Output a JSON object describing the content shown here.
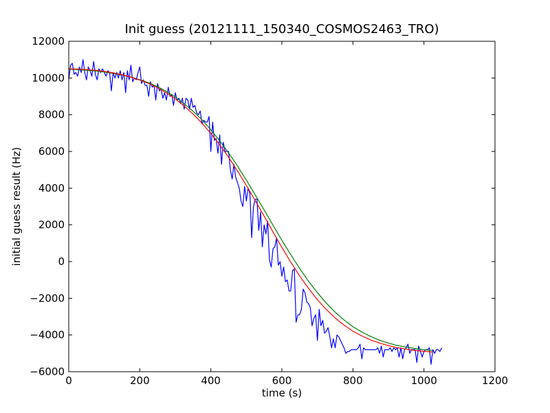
{
  "chart_data": {
    "type": "line",
    "title": "Init guess (20121111_150340_COSMOS2463_TRO)",
    "xlabel": "time (s)",
    "ylabel": "initial guess result (Hz)",
    "xlim": [
      0,
      1200
    ],
    "ylim": [
      -6000,
      12000
    ],
    "xticks": [
      0,
      200,
      400,
      600,
      800,
      1000,
      1200
    ],
    "yticks": [
      -6000,
      -4000,
      -2000,
      0,
      2000,
      4000,
      6000,
      8000,
      10000,
      12000
    ],
    "grid": false,
    "legend": "none",
    "series": [
      {
        "color": "#0000ff",
        "points": [
          [
            0,
            9900
          ],
          [
            5,
            10700
          ],
          [
            10,
            10800
          ],
          [
            15,
            10200
          ],
          [
            20,
            10300
          ],
          [
            25,
            10100
          ],
          [
            30,
            10600
          ],
          [
            35,
            10300
          ],
          [
            40,
            11000
          ],
          [
            45,
            10300
          ],
          [
            50,
            9900
          ],
          [
            55,
            10600
          ],
          [
            60,
            10400
          ],
          [
            65,
            10100
          ],
          [
            70,
            10900
          ],
          [
            75,
            10200
          ],
          [
            80,
            9900
          ],
          [
            85,
            10500
          ],
          [
            90,
            10300
          ],
          [
            95,
            10500
          ],
          [
            100,
            10300
          ],
          [
            105,
            10100
          ],
          [
            110,
            10400
          ],
          [
            115,
            10300
          ],
          [
            120,
            9300
          ],
          [
            125,
            10300
          ],
          [
            130,
            10000
          ],
          [
            135,
            10300
          ],
          [
            140,
            10000
          ],
          [
            145,
            10400
          ],
          [
            150,
            9900
          ],
          [
            155,
            10300
          ],
          [
            160,
            9200
          ],
          [
            165,
            10400
          ],
          [
            170,
            9900
          ],
          [
            175,
            10700
          ],
          [
            180,
            9800
          ],
          [
            185,
            10000
          ],
          [
            190,
            9900
          ],
          [
            195,
            10300
          ],
          [
            200,
            10600
          ],
          [
            205,
            9700
          ],
          [
            210,
            9900
          ],
          [
            215,
            9600
          ],
          [
            220,
            9600
          ],
          [
            225,
            9000
          ],
          [
            230,
            9800
          ],
          [
            235,
            9500
          ],
          [
            240,
            9600
          ],
          [
            245,
            8800
          ],
          [
            250,
            9700
          ],
          [
            255,
            9300
          ],
          [
            260,
            9400
          ],
          [
            265,
            8900
          ],
          [
            270,
            9200
          ],
          [
            275,
            8800
          ],
          [
            280,
            9500
          ],
          [
            285,
            9000
          ],
          [
            290,
            9100
          ],
          [
            295,
            8500
          ],
          [
            300,
            9200
          ],
          [
            305,
            8800
          ],
          [
            310,
            8900
          ],
          [
            315,
            8600
          ],
          [
            320,
            8900
          ],
          [
            325,
            8300
          ],
          [
            330,
            8900
          ],
          [
            335,
            8800
          ],
          [
            340,
            8300
          ],
          [
            345,
            8900
          ],
          [
            350,
            8400
          ],
          [
            355,
            8500
          ],
          [
            360,
            8100
          ],
          [
            365,
            8000
          ],
          [
            370,
            8200
          ],
          [
            375,
            7500
          ],
          [
            380,
            7700
          ],
          [
            385,
            7600
          ],
          [
            390,
            7600
          ],
          [
            395,
            7900
          ],
          [
            400,
            6000
          ],
          [
            405,
            7600
          ],
          [
            410,
            6600
          ],
          [
            415,
            6700
          ],
          [
            420,
            5900
          ],
          [
            425,
            6900
          ],
          [
            430,
            5300
          ],
          [
            435,
            6500
          ],
          [
            440,
            6000
          ],
          [
            445,
            6000
          ],
          [
            450,
            6000
          ],
          [
            455,
            5000
          ],
          [
            460,
            4500
          ],
          [
            465,
            5300
          ],
          [
            470,
            4600
          ],
          [
            475,
            4300
          ],
          [
            480,
            4000
          ],
          [
            485,
            3300
          ],
          [
            490,
            3000
          ],
          [
            495,
            4100
          ],
          [
            500,
            3300
          ],
          [
            505,
            4000
          ],
          [
            510,
            3700
          ],
          [
            515,
            1300
          ],
          [
            520,
            3000
          ],
          [
            525,
            3400
          ],
          [
            530,
            3400
          ],
          [
            535,
            1700
          ],
          [
            540,
            2700
          ],
          [
            545,
            800
          ],
          [
            550,
            2000
          ],
          [
            555,
            1500
          ],
          [
            560,
            2200
          ],
          [
            565,
            100
          ],
          [
            570,
            -300
          ],
          [
            575,
            700
          ],
          [
            580,
            800
          ],
          [
            585,
            1300
          ],
          [
            590,
            -200
          ],
          [
            595,
            0
          ],
          [
            600,
            -800
          ],
          [
            605,
            -300
          ],
          [
            610,
            -1100
          ],
          [
            615,
            -1000
          ],
          [
            620,
            -1600
          ],
          [
            625,
            -1600
          ],
          [
            630,
            -500
          ],
          [
            635,
            -400
          ],
          [
            640,
            -3300
          ],
          [
            645,
            -2900
          ],
          [
            650,
            -2900
          ],
          [
            655,
            -2600
          ],
          [
            660,
            -1500
          ],
          [
            665,
            -1700
          ],
          [
            670,
            -2200
          ],
          [
            675,
            -2300
          ],
          [
            680,
            -2500
          ],
          [
            685,
            -3500
          ],
          [
            690,
            -3100
          ],
          [
            695,
            -2900
          ],
          [
            700,
            -4300
          ],
          [
            705,
            -2600
          ],
          [
            710,
            -3500
          ],
          [
            715,
            -3200
          ],
          [
            720,
            -3900
          ],
          [
            725,
            -3800
          ],
          [
            730,
            -3600
          ],
          [
            735,
            -4100
          ],
          [
            740,
            -4700
          ],
          [
            745,
            -4200
          ],
          [
            750,
            -4700
          ],
          [
            755,
            -4000
          ],
          [
            760,
            -4100
          ],
          [
            765,
            -4300
          ],
          [
            770,
            -4500
          ],
          [
            775,
            -4700
          ],
          [
            780,
            -5000
          ],
          [
            785,
            -4900
          ],
          [
            790,
            -4900
          ],
          [
            795,
            -4800
          ],
          [
            800,
            -4800
          ],
          [
            805,
            -4800
          ],
          [
            810,
            -4800
          ],
          [
            815,
            -4700
          ],
          [
            820,
            -4500
          ],
          [
            825,
            -5300
          ],
          [
            830,
            -4700
          ],
          [
            835,
            -4800
          ],
          [
            840,
            -4800
          ],
          [
            845,
            -4800
          ],
          [
            850,
            -4800
          ],
          [
            855,
            -4800
          ],
          [
            860,
            -4800
          ],
          [
            865,
            -4800
          ],
          [
            870,
            -4700
          ],
          [
            875,
            -5000
          ],
          [
            880,
            -4600
          ],
          [
            885,
            -5200
          ],
          [
            890,
            -4800
          ],
          [
            895,
            -4800
          ],
          [
            900,
            -4800
          ],
          [
            905,
            -4700
          ],
          [
            910,
            -4900
          ],
          [
            915,
            -4700
          ],
          [
            920,
            -4800
          ],
          [
            925,
            -4700
          ],
          [
            930,
            -5200
          ],
          [
            935,
            -4700
          ],
          [
            940,
            -5300
          ],
          [
            945,
            -4800
          ],
          [
            950,
            -4700
          ],
          [
            955,
            -4500
          ],
          [
            960,
            -5000
          ],
          [
            965,
            -4800
          ],
          [
            970,
            -4800
          ],
          [
            975,
            -4800
          ],
          [
            980,
            -5500
          ],
          [
            985,
            -4600
          ],
          [
            990,
            -4900
          ],
          [
            995,
            -5200
          ],
          [
            1000,
            -4900
          ],
          [
            1005,
            -4800
          ],
          [
            1010,
            -4800
          ],
          [
            1015,
            -4700
          ],
          [
            1020,
            -5600
          ],
          [
            1025,
            -4800
          ],
          [
            1030,
            -5000
          ],
          [
            1035,
            -4800
          ],
          [
            1040,
            -4800
          ],
          [
            1045,
            -4900
          ],
          [
            1050,
            -4700
          ]
        ]
      },
      {
        "color": "#008000",
        "points": [
          [
            0,
            10480
          ],
          [
            25,
            10450
          ],
          [
            50,
            10420
          ],
          [
            75,
            10380
          ],
          [
            100,
            10330
          ],
          [
            125,
            10250
          ],
          [
            150,
            10160
          ],
          [
            175,
            10050
          ],
          [
            200,
            9910
          ],
          [
            225,
            9740
          ],
          [
            250,
            9530
          ],
          [
            275,
            9270
          ],
          [
            300,
            8960
          ],
          [
            325,
            8600
          ],
          [
            350,
            8190
          ],
          [
            375,
            7720
          ],
          [
            400,
            7180
          ],
          [
            425,
            6580
          ],
          [
            450,
            5920
          ],
          [
            475,
            5210
          ],
          [
            500,
            4440
          ],
          [
            525,
            3630
          ],
          [
            550,
            2810
          ],
          [
            575,
            1980
          ],
          [
            600,
            1160
          ],
          [
            625,
            380
          ],
          [
            650,
            -370
          ],
          [
            675,
            -1080
          ],
          [
            700,
            -1700
          ],
          [
            725,
            -2260
          ],
          [
            750,
            -2760
          ],
          [
            775,
            -3180
          ],
          [
            800,
            -3550
          ],
          [
            825,
            -3840
          ],
          [
            850,
            -4080
          ],
          [
            875,
            -4290
          ],
          [
            900,
            -4440
          ],
          [
            925,
            -4570
          ],
          [
            950,
            -4660
          ],
          [
            975,
            -4740
          ],
          [
            1000,
            -4800
          ],
          [
            1025,
            -4840
          ]
        ]
      },
      {
        "color": "#ff0000",
        "points": [
          [
            0,
            10500
          ],
          [
            25,
            10490
          ],
          [
            50,
            10460
          ],
          [
            75,
            10420
          ],
          [
            100,
            10360
          ],
          [
            125,
            10280
          ],
          [
            150,
            10180
          ],
          [
            175,
            10050
          ],
          [
            200,
            9890
          ],
          [
            225,
            9700
          ],
          [
            250,
            9470
          ],
          [
            275,
            9190
          ],
          [
            300,
            8860
          ],
          [
            325,
            8480
          ],
          [
            350,
            8040
          ],
          [
            375,
            7540
          ],
          [
            400,
            6980
          ],
          [
            425,
            6360
          ],
          [
            450,
            5680
          ],
          [
            475,
            4940
          ],
          [
            500,
            4150
          ],
          [
            525,
            3320
          ],
          [
            550,
            2470
          ],
          [
            575,
            1610
          ],
          [
            600,
            770
          ],
          [
            625,
            -30
          ],
          [
            650,
            -780
          ],
          [
            675,
            -1460
          ],
          [
            700,
            -2080
          ],
          [
            725,
            -2610
          ],
          [
            750,
            -3070
          ],
          [
            775,
            -3460
          ],
          [
            800,
            -3790
          ],
          [
            825,
            -4050
          ],
          [
            850,
            -4270
          ],
          [
            875,
            -4440
          ],
          [
            900,
            -4580
          ],
          [
            925,
            -4690
          ],
          [
            950,
            -4770
          ],
          [
            975,
            -4840
          ],
          [
            1000,
            -4890
          ],
          [
            1025,
            -4930
          ]
        ]
      }
    ]
  }
}
